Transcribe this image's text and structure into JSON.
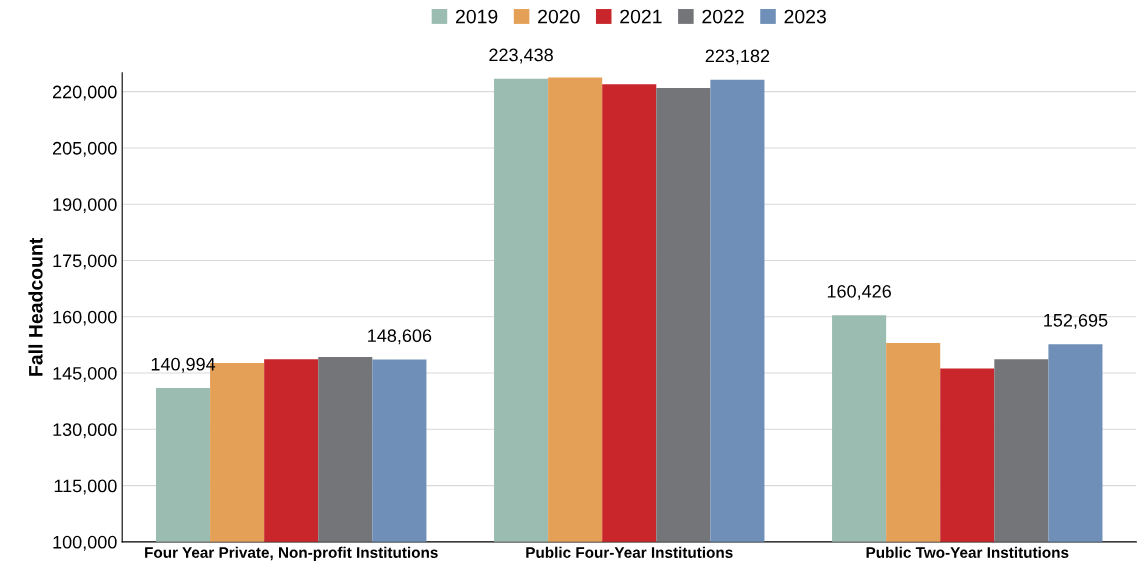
{
  "chart_data": {
    "type": "bar",
    "ylabel": "Fall Headcount",
    "categories": [
      "Four Year Private, Non-profit Institutions",
      "Public Four-Year Institutions",
      "Public Two-Year Institutions"
    ],
    "series": [
      {
        "name": "2019",
        "color": "#9bbcb0",
        "values": [
          140994,
          223438,
          160426
        ],
        "value_labels": [
          "140,994",
          "223,438",
          "160,426"
        ]
      },
      {
        "name": "2020",
        "color": "#e5a057",
        "values": [
          147700,
          223800,
          153000
        ]
      },
      {
        "name": "2021",
        "color": "#c8262b",
        "values": [
          148700,
          222000,
          146200
        ]
      },
      {
        "name": "2022",
        "color": "#747578",
        "values": [
          149300,
          221000,
          148700
        ]
      },
      {
        "name": "2023",
        "color": "#6f8fb8",
        "values": [
          148606,
          223182,
          152695
        ],
        "value_labels": [
          "148,606",
          "223,182",
          "152,695"
        ]
      }
    ],
    "ylim": [
      100000,
      225000
    ],
    "yticks": [
      {
        "value": 100000,
        "label": "100,000"
      },
      {
        "value": 115000,
        "label": "115,000"
      },
      {
        "value": 130000,
        "label": "130,000"
      },
      {
        "value": 145000,
        "label": "145,000"
      },
      {
        "value": 160000,
        "label": "160,000"
      },
      {
        "value": 175000,
        "label": "175,000"
      },
      {
        "value": 190000,
        "label": "190,000"
      },
      {
        "value": 205000,
        "label": "205,000"
      },
      {
        "value": 220000,
        "label": "220,000"
      }
    ],
    "grid": "y",
    "legend": "top"
  }
}
